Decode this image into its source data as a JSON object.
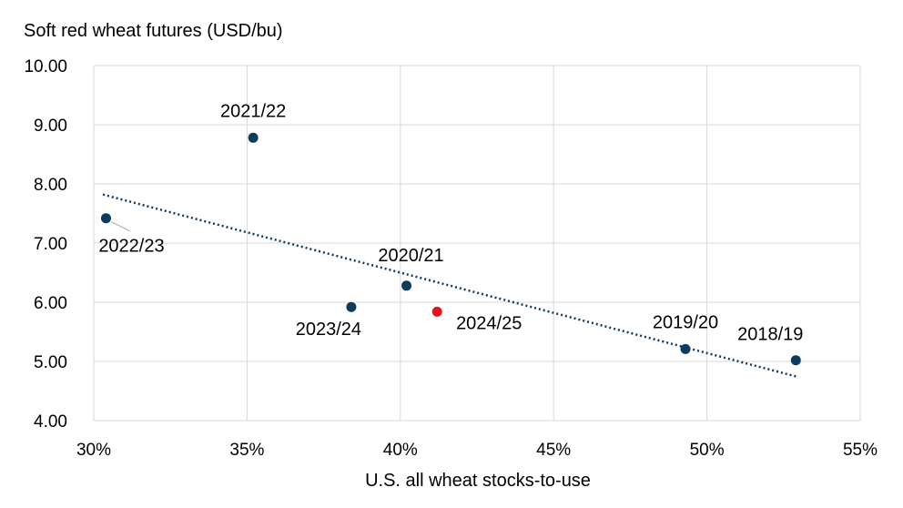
{
  "chart_data": {
    "type": "scatter",
    "ylabel": "Soft red wheat futures (USD/bu)",
    "xlabel": "U.S. all wheat stocks-to-use",
    "xlim": [
      0.3,
      0.55
    ],
    "ylim": [
      4.0,
      10.0
    ],
    "x_ticks": [
      0.3,
      0.35,
      0.4,
      0.45,
      0.5,
      0.55
    ],
    "x_tick_labels": [
      "30%",
      "35%",
      "40%",
      "45%",
      "50%",
      "55%"
    ],
    "y_ticks": [
      4,
      5,
      6,
      7,
      8,
      9,
      10
    ],
    "y_tick_labels": [
      "4.00",
      "5.00",
      "6.00",
      "7.00",
      "8.00",
      "9.00",
      "10.00"
    ],
    "grid": true,
    "points": [
      {
        "label": "2018/19",
        "x": 0.529,
        "y": 5.02,
        "color": "#0e3a5c"
      },
      {
        "label": "2019/20",
        "x": 0.493,
        "y": 5.21,
        "color": "#0e3a5c"
      },
      {
        "label": "2020/21",
        "x": 0.402,
        "y": 6.28,
        "color": "#0e3a5c"
      },
      {
        "label": "2021/22",
        "x": 0.352,
        "y": 8.78,
        "color": "#0e3a5c"
      },
      {
        "label": "2022/23",
        "x": 0.304,
        "y": 7.42,
        "color": "#0e3a5c"
      },
      {
        "label": "2023/24",
        "x": 0.384,
        "y": 5.92,
        "color": "#0e3a5c"
      },
      {
        "label": "2024/25",
        "x": 0.412,
        "y": 5.84,
        "color": "#e8101a"
      }
    ],
    "trendline": {
      "style": "dotted",
      "color": "#0e3a5c",
      "x": [
        0.303,
        0.5295
      ],
      "y": [
        7.82,
        4.74
      ]
    }
  }
}
